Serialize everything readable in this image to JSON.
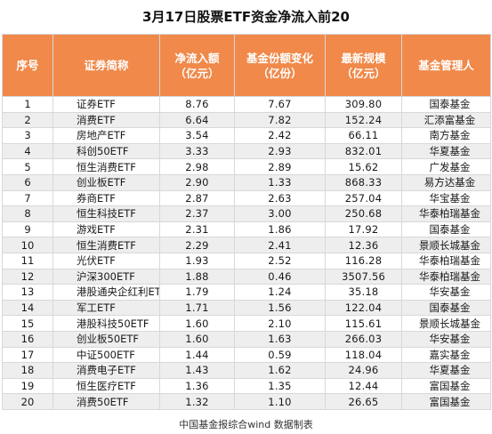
{
  "title": "3月17日股票ETF资金净流入前20",
  "headers": [
    [
      "序号"
    ],
    [
      "证券简称"
    ],
    [
      "净流入额",
      "（亿元）"
    ],
    [
      "基金份额变化",
      "（亿份）"
    ],
    [
      "最新规模",
      "（亿元）"
    ],
    [
      "基金管理人"
    ]
  ],
  "rows": [
    {
      "no": "1",
      "name": "证券ETF",
      "inflow": "8.76",
      "share_change": "7.67",
      "size": "309.80",
      "manager": "国泰基金"
    },
    {
      "no": "2",
      "name": "消费ETF",
      "inflow": "6.64",
      "share_change": "7.82",
      "size": "152.24",
      "manager": "汇添富基金"
    },
    {
      "no": "3",
      "name": "房地产ETF",
      "inflow": "3.54",
      "share_change": "2.42",
      "size": "66.11",
      "manager": "南方基金"
    },
    {
      "no": "4",
      "name": "科创50ETF",
      "inflow": "3.33",
      "share_change": "2.93",
      "size": "832.01",
      "manager": "华夏基金"
    },
    {
      "no": "5",
      "name": "恒生消费ETF",
      "inflow": "2.98",
      "share_change": "2.89",
      "size": "15.62",
      "manager": "广发基金"
    },
    {
      "no": "6",
      "name": "创业板ETF",
      "inflow": "2.90",
      "share_change": "1.33",
      "size": "868.33",
      "manager": "易方达基金"
    },
    {
      "no": "7",
      "name": "券商ETF",
      "inflow": "2.87",
      "share_change": "2.63",
      "size": "257.04",
      "manager": "华宝基金"
    },
    {
      "no": "8",
      "name": "恒生科技ETF",
      "inflow": "2.37",
      "share_change": "3.00",
      "size": "250.68",
      "manager": "华泰柏瑞基金"
    },
    {
      "no": "9",
      "name": "游戏ETF",
      "inflow": "2.31",
      "share_change": "1.86",
      "size": "17.92",
      "manager": "国泰基金"
    },
    {
      "no": "10",
      "name": "恒生消费ETF",
      "inflow": "2.29",
      "share_change": "2.41",
      "size": "12.36",
      "manager": "景顺长城基金"
    },
    {
      "no": "11",
      "name": "光伏ETF",
      "inflow": "1.93",
      "share_change": "2.52",
      "size": "116.28",
      "manager": "华泰柏瑞基金"
    },
    {
      "no": "12",
      "name": "沪深300ETF",
      "inflow": "1.88",
      "share_change": "0.46",
      "size": "3507.56",
      "manager": "华泰柏瑞基金"
    },
    {
      "no": "13",
      "name": "港股通央企红利ETF",
      "inflow": "1.79",
      "share_change": "1.24",
      "size": "35.18",
      "manager": "华安基金"
    },
    {
      "no": "14",
      "name": "军工ETF",
      "inflow": "1.71",
      "share_change": "1.56",
      "size": "122.04",
      "manager": "国泰基金"
    },
    {
      "no": "15",
      "name": "港股科技50ETF",
      "inflow": "1.60",
      "share_change": "2.10",
      "size": "115.61",
      "manager": "景顺长城基金"
    },
    {
      "no": "16",
      "name": "创业板50ETF",
      "inflow": "1.60",
      "share_change": "1.63",
      "size": "266.03",
      "manager": "华安基金"
    },
    {
      "no": "17",
      "name": "中证500ETF",
      "inflow": "1.44",
      "share_change": "0.59",
      "size": "118.04",
      "manager": "嘉实基金"
    },
    {
      "no": "18",
      "name": "消费电子ETF",
      "inflow": "1.43",
      "share_change": "1.62",
      "size": "24.96",
      "manager": "华夏基金"
    },
    {
      "no": "19",
      "name": "恒生医疗ETF",
      "inflow": "1.36",
      "share_change": "1.35",
      "size": "12.44",
      "manager": "富国基金"
    },
    {
      "no": "20",
      "name": "消费50ETF",
      "inflow": "1.32",
      "share_change": "1.10",
      "size": "26.65",
      "manager": "富国基金"
    }
  ],
  "footnote": "中国基金报综合wind 数据制表",
  "colors": {
    "header_bg": "#f0894a",
    "header_text": "#ffffff",
    "row_stripe": "#eeeeee",
    "grid_line": "#d8d8d8"
  }
}
